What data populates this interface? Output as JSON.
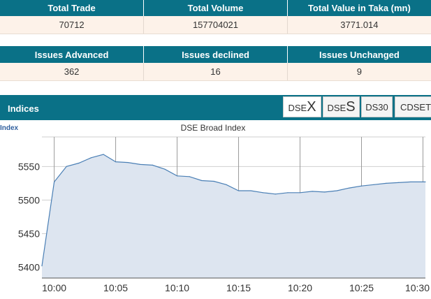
{
  "summary": {
    "headers": [
      "Total Trade",
      "Total Volume",
      "Total Value in Taka (mn)"
    ],
    "values": [
      "70712",
      "157704021",
      "3771.014"
    ]
  },
  "issues": {
    "headers": [
      "Issues Advanced",
      "Issues declined",
      "Issues Unchanged"
    ],
    "values": [
      "362",
      "16",
      "9"
    ]
  },
  "indices": {
    "title": "Indices",
    "tabs": {
      "dsex_prefix": "DSE",
      "dsex_letter": "X",
      "dses_prefix": "DSE",
      "dses_letter": "S",
      "ds30": "DS30",
      "cdset": "CDSET"
    }
  },
  "colors": {
    "header_bg": "#0a7187",
    "row_bg": "#fdf2e9",
    "line": "#4a7fb5",
    "fill": "#dde5f0"
  },
  "chart_data": {
    "type": "area",
    "title": "DSE Broad Index",
    "ylabel": "Index",
    "xlabel": "",
    "x_ticks": [
      "10:00",
      "10:05",
      "10:10",
      "10:15",
      "10:20",
      "10:25",
      "10:30"
    ],
    "y_ticks": [
      5400,
      5450,
      5500,
      5550
    ],
    "ylim": [
      5384,
      5594
    ],
    "xlim": [
      -1,
      30.2
    ],
    "grid": true,
    "series": [
      {
        "values": [
          {
            "x": -1,
            "y": 5402
          },
          {
            "x": 0,
            "y": 5527
          },
          {
            "x": 1,
            "y": 5550
          },
          {
            "x": 2,
            "y": 5555
          },
          {
            "x": 3,
            "y": 5563
          },
          {
            "x": 4,
            "y": 5568
          },
          {
            "x": 5,
            "y": 5557
          },
          {
            "x": 6,
            "y": 5556
          },
          {
            "x": 7,
            "y": 5553
          },
          {
            "x": 8,
            "y": 5552
          },
          {
            "x": 9,
            "y": 5546
          },
          {
            "x": 10,
            "y": 5536
          },
          {
            "x": 11,
            "y": 5535
          },
          {
            "x": 12,
            "y": 5529
          },
          {
            "x": 13,
            "y": 5528
          },
          {
            "x": 14,
            "y": 5523
          },
          {
            "x": 15,
            "y": 5514
          },
          {
            "x": 16,
            "y": 5514
          },
          {
            "x": 17,
            "y": 5511
          },
          {
            "x": 18,
            "y": 5509
          },
          {
            "x": 19,
            "y": 5511
          },
          {
            "x": 20,
            "y": 5511
          },
          {
            "x": 21,
            "y": 5513
          },
          {
            "x": 22,
            "y": 5512
          },
          {
            "x": 23,
            "y": 5514
          },
          {
            "x": 24,
            "y": 5518
          },
          {
            "x": 25,
            "y": 5521
          },
          {
            "x": 26,
            "y": 5523
          },
          {
            "x": 27,
            "y": 5525
          },
          {
            "x": 28,
            "y": 5526
          },
          {
            "x": 29,
            "y": 5527
          },
          {
            "x": 30.2,
            "y": 5527
          }
        ]
      }
    ]
  }
}
